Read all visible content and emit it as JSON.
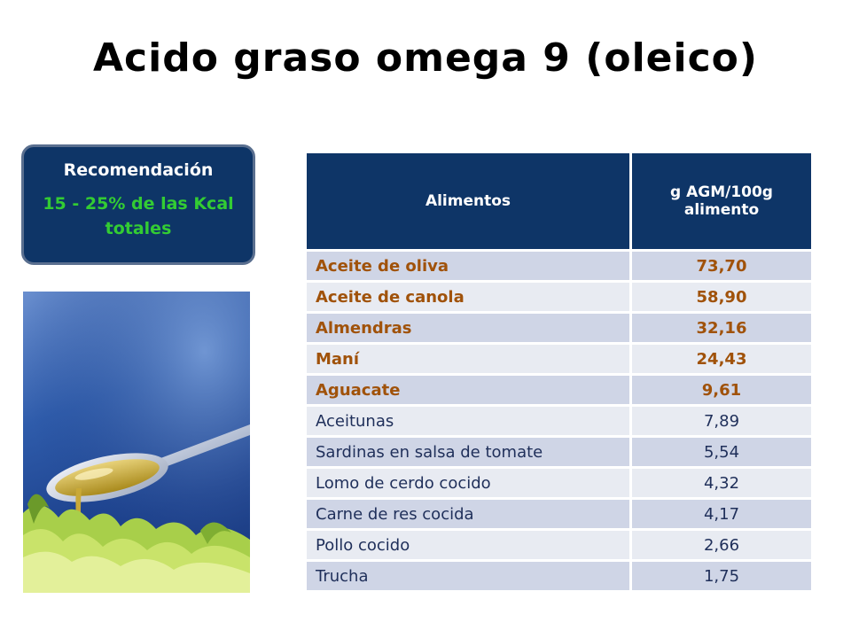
{
  "title": "Acido graso omega 9 (oleico)",
  "recommendation": {
    "heading": "Recomendación",
    "value": "15 - 25% de las Kcal totales"
  },
  "table": {
    "headers": [
      "Alimentos",
      "g AGM/100g alimento"
    ],
    "rows": [
      {
        "food": "Aceite de oliva",
        "value": "73,70",
        "highlight": true
      },
      {
        "food": "Aceite de canola",
        "value": "58,90",
        "highlight": true
      },
      {
        "food": "Almendras",
        "value": "32,16",
        "highlight": true
      },
      {
        "food": "Maní",
        "value": "24,43",
        "highlight": true
      },
      {
        "food": "Aguacate",
        "value": "9,61",
        "highlight": true
      },
      {
        "food": "Aceitunas",
        "value": "7,89",
        "highlight": false
      },
      {
        "food": "Sardinas en salsa de tomate",
        "value": "5,54",
        "highlight": false
      },
      {
        "food": "Lomo de cerdo cocido",
        "value": "4,32",
        "highlight": false
      },
      {
        "food": "Carne de res cocida",
        "value": "4,17",
        "highlight": false
      },
      {
        "food": "Pollo cocido",
        "value": "2,66",
        "highlight": false
      },
      {
        "food": "Trucha",
        "value": "1,75",
        "highlight": false
      }
    ]
  },
  "colors": {
    "header_bg": "#0e3567",
    "highlight_text": "#a0520a",
    "normal_text": "#1f2f5a",
    "recommendation_value": "#33cc33"
  },
  "image": {
    "subject": "olive-oil-spoon-over-lettuce"
  }
}
